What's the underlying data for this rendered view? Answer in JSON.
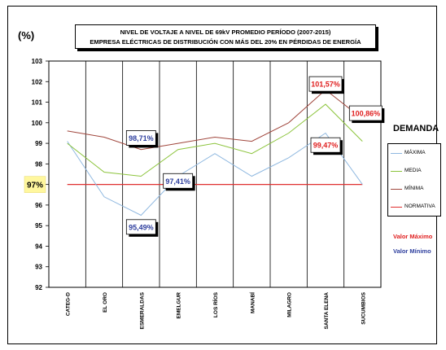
{
  "chart_data": {
    "type": "line",
    "title_line1": "NIVEL DE VOLTAJE A NIVEL DE 69kV PROMEDIO PERÍODO (2007-2015)",
    "title_line2": "EMPRESA ELÉCTRICAS DE DISTRIBUCIÓN CON MÁS DEL 20% EN PÉRDIDAS DE ENERGÍA",
    "unit_label": "(%)",
    "categories": [
      "CATEG-D",
      "EL ORO",
      "ESMERALDAS",
      "EMELGUR",
      "LOS RÍOS",
      "MANABÍ",
      "MILAGRO",
      "SANTA ELENA",
      "SUCUMBIOS"
    ],
    "ylim": [
      92,
      103
    ],
    "yticks": [
      "92",
      "93",
      "94",
      "95",
      "96",
      "97",
      "98",
      "99",
      "100",
      "101",
      "102",
      "103"
    ],
    "grid": true,
    "legend_title": "DEMANDA",
    "legend_placement": "right",
    "series": [
      {
        "name": "MÁXIMA",
        "color": "#8fb8e0",
        "values": [
          99.1,
          96.4,
          95.5,
          97.4,
          98.5,
          97.4,
          98.3,
          99.5,
          97.0
        ]
      },
      {
        "name": "MEDIA",
        "color": "#8cc43c",
        "values": [
          99.0,
          97.6,
          97.4,
          98.7,
          99.0,
          98.5,
          99.5,
          100.9,
          99.1
        ]
      },
      {
        "name": "MÍNIMA",
        "color": "#a0463c",
        "values": [
          99.6,
          99.3,
          98.7,
          99.0,
          99.3,
          99.1,
          100.0,
          101.6,
          100.2
        ]
      },
      {
        "name": "NORMATIVA",
        "color": "#e03030",
        "values": [
          97.0,
          97.0,
          97.0,
          97.0,
          97.0,
          97.0,
          97.0,
          97.0,
          97.0
        ]
      }
    ],
    "callouts": [
      {
        "text": "98,71%",
        "category": "ESMERALDAS",
        "value": 98.71,
        "color": "#2e3f9e"
      },
      {
        "text": "97,41%",
        "category": "EMELGUR",
        "value": 97.41,
        "color": "#2e3f9e"
      },
      {
        "text": "95,49%",
        "category": "ESMERALDAS",
        "value": 95.49,
        "color": "#2e3f9e"
      },
      {
        "text": "101,57%",
        "category": "SANTA ELENA",
        "value": 101.57,
        "color": "#e02020"
      },
      {
        "text": "100,86%",
        "category": "SUCUMBIOS",
        "value": 100.86,
        "color": "#e02020"
      },
      {
        "text": "99,47%",
        "category": "SANTA ELENA",
        "value": 99.47,
        "color": "#e02020"
      }
    ],
    "normativa_label": "97%",
    "extra_labels": [
      {
        "text": "Valor Máximo",
        "color": "#e02020"
      },
      {
        "text": "Valor Mínimo",
        "color": "#2e3f9e"
      }
    ]
  }
}
